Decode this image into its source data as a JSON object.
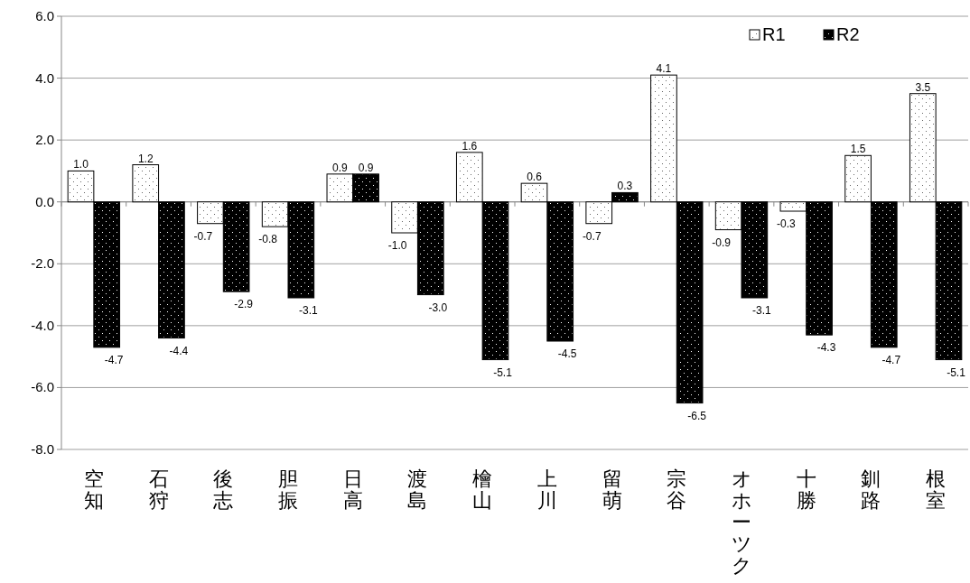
{
  "chart_data": {
    "type": "bar",
    "categories": [
      "空知",
      "石狩",
      "後志",
      "胆振",
      "日高",
      "渡島",
      "檜山",
      "上川",
      "留萌",
      "宗谷",
      "オホーツク",
      "十勝",
      "釧路",
      "根室"
    ],
    "series": [
      {
        "name": "R1",
        "color": "#ffffff",
        "values": [
          1.0,
          1.2,
          -0.7,
          -0.8,
          0.9,
          -1.0,
          1.6,
          0.6,
          -0.7,
          4.1,
          -0.9,
          -0.3,
          1.5,
          3.5
        ],
        "value_labels": [
          "1.0",
          "1.2",
          "-0.7",
          "-0.8",
          "0.9",
          "-1.0",
          "1.6",
          "0.6",
          "-0.7",
          "4.1",
          "-0.9",
          "-0.3",
          "1.5",
          "3.5"
        ]
      },
      {
        "name": "R2",
        "color": "#000000",
        "values": [
          -4.7,
          -4.4,
          -2.9,
          -3.1,
          0.9,
          -3.0,
          -5.1,
          -4.5,
          0.3,
          -6.5,
          -3.1,
          -4.3,
          -4.7,
          -5.1
        ],
        "value_labels": [
          "-4.7",
          "-4.4",
          "-2.9",
          "-3.1",
          "0.9",
          "-3.0",
          "-5.1",
          "-4.5",
          "0.3",
          "-6.5",
          "-3.1",
          "-4.3",
          "-4.7",
          "-5.1"
        ]
      }
    ],
    "ylim": [
      -8,
      6
    ],
    "yticks": [
      {
        "value": -8,
        "label": "-8.0"
      },
      {
        "value": -6,
        "label": "-6.0"
      },
      {
        "value": -4,
        "label": "-4.0"
      },
      {
        "value": -2,
        "label": "-2.0"
      },
      {
        "value": 0,
        "label": "0.0"
      },
      {
        "value": 2,
        "label": "2.0"
      },
      {
        "value": 4,
        "label": "4.0"
      },
      {
        "value": 6,
        "label": "6.0"
      }
    ],
    "grid": "y",
    "legend": "top right"
  }
}
